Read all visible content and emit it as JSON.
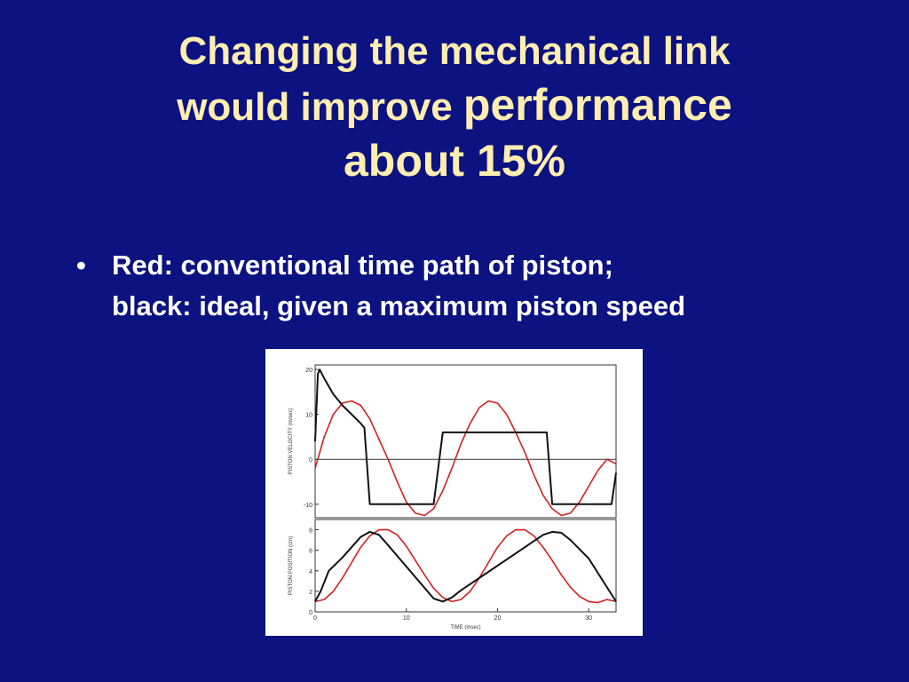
{
  "title": {
    "line1": "Changing the mechanical link",
    "line2_a": "would improve ",
    "line2_b": "performance",
    "line3": "about 15%"
  },
  "bullet": {
    "symbol": "•",
    "line1": "Red: conventional time path of piston;",
    "line2": "black: ideal, given a maximum piston speed"
  },
  "chart_data": [
    {
      "type": "line",
      "ylabel": "PISTON VELOCITY (m/sec)",
      "xlim": [
        0,
        33
      ],
      "ylim": [
        -13,
        21
      ],
      "yticks": [
        -10,
        0,
        10,
        20
      ],
      "ytick_labels": [
        "-10",
        "0",
        "10",
        "20"
      ],
      "grid": false,
      "series": [
        {
          "color": "#d42020",
          "x": [
            0,
            1,
            2,
            3,
            4,
            5,
            6,
            7,
            8,
            9,
            10,
            11,
            12,
            13,
            14,
            15,
            16,
            17,
            18,
            19,
            20,
            21,
            22,
            23,
            24,
            25,
            26,
            27,
            28,
            29,
            30,
            31,
            32,
            33
          ],
          "y": [
            -2,
            5,
            10,
            12.5,
            13,
            12,
            9,
            4.5,
            0,
            -5,
            -9.5,
            -12,
            -12.5,
            -11,
            -7,
            -2,
            3.5,
            8,
            11.5,
            13,
            12.5,
            10,
            6,
            1.5,
            -3.5,
            -8,
            -11,
            -12.5,
            -12,
            -9.5,
            -6,
            -2.5,
            0,
            -1
          ]
        },
        {
          "color": "#111111",
          "x": [
            0,
            0.3,
            0.5,
            1,
            2,
            3,
            4,
            5,
            5.4,
            6,
            12.5,
            13,
            14,
            15,
            16,
            24,
            25,
            25.4,
            26,
            32.5,
            33
          ],
          "y": [
            4,
            19,
            20,
            18,
            14.5,
            12,
            10,
            8,
            7,
            -10,
            -10,
            -10,
            6,
            6,
            6,
            6,
            6,
            6,
            -10,
            -10,
            -3
          ]
        }
      ]
    },
    {
      "type": "line",
      "ylabel": "PISTON POSITION (cm)",
      "xlabel": "TIME (msec)",
      "xlim": [
        0,
        33
      ],
      "ylim": [
        0,
        9
      ],
      "yticks": [
        0,
        2,
        4,
        6,
        8
      ],
      "ytick_labels": [
        "0",
        "2",
        "4",
        "6",
        "8"
      ],
      "xticks": [
        0,
        10,
        20,
        30
      ],
      "xtick_labels": [
        "0",
        "10",
        "20",
        "30"
      ],
      "grid": false,
      "series": [
        {
          "color": "#d42020",
          "x": [
            0,
            1,
            2,
            3,
            4,
            5,
            6,
            7,
            8,
            9,
            10,
            11,
            12,
            13,
            14,
            15,
            16,
            17,
            18,
            19,
            20,
            21,
            22,
            23,
            24,
            25,
            26,
            27,
            28,
            29,
            30,
            31,
            32,
            33
          ],
          "y": [
            1,
            1.2,
            2,
            3.3,
            4.8,
            6.3,
            7.4,
            8,
            8,
            7.5,
            6.4,
            5,
            3.6,
            2.3,
            1.4,
            1,
            1.2,
            2,
            3.3,
            4.8,
            6.3,
            7.4,
            8,
            8,
            7.4,
            6.3,
            5,
            3.6,
            2.4,
            1.5,
            1,
            0.9,
            1.2,
            1
          ]
        },
        {
          "color": "#111111",
          "x": [
            0,
            0.6,
            1.5,
            3,
            5,
            6,
            7,
            8,
            13,
            14,
            15,
            16,
            20,
            25,
            26,
            27,
            28,
            30,
            33
          ],
          "y": [
            1,
            2,
            4,
            5.3,
            7.3,
            7.8,
            7.5,
            6.5,
            1.3,
            1,
            1.4,
            2.1,
            4.5,
            7.5,
            7.8,
            7.7,
            7,
            5.2,
            1
          ]
        }
      ]
    }
  ]
}
